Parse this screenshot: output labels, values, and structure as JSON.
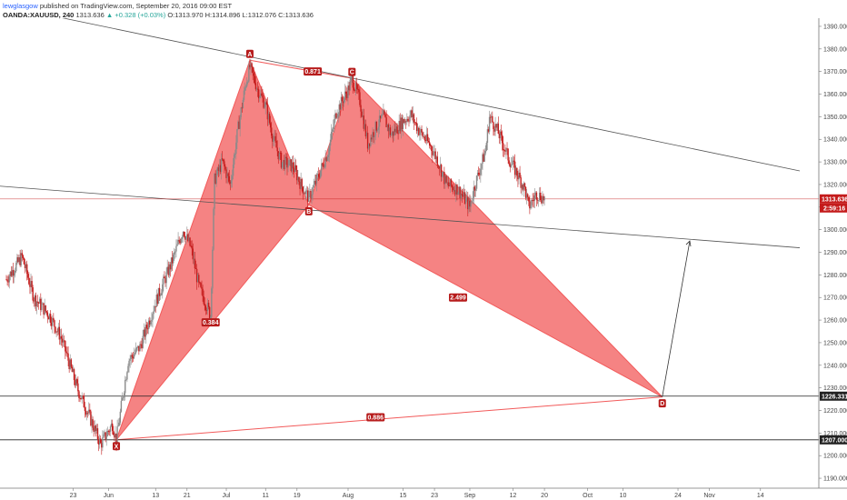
{
  "header": {
    "author": "lewglasgow",
    "published": "published on TradingView.com, September 20, 2016 09:00 EST",
    "symbol": "OANDA:XAUUSD, 240",
    "price": "1313.636",
    "change": "▲ +0.328 (+0.03%)",
    "open": "O:1313.970",
    "high": "H:1314.896",
    "low": "L:1312.076",
    "close": "C:1313.636"
  },
  "colors": {
    "pattern_fill": "#f25a5a",
    "up_candle": "#8a8a8a",
    "down_candle": "#c41b1b",
    "trend_line": "#555555",
    "price_line": "#c41b1b",
    "tag_bg": "#b71c1c"
  },
  "chart_data": {
    "type": "line",
    "title": "",
    "xlabel": "",
    "ylabel": "",
    "ylim": [
      1186,
      1392
    ],
    "grid": false,
    "y_ticks": [
      "1190.000",
      "1200.000",
      "1210.000",
      "1220.000",
      "1230.000",
      "1240.000",
      "1250.000",
      "1260.000",
      "1270.000",
      "1280.000",
      "1290.000",
      "1300.000",
      "1310.000",
      "1320.000",
      "1330.000",
      "1340.000",
      "1350.000",
      "1360.000",
      "1370.000",
      "1380.000",
      "1390.000"
    ],
    "x_ticks": [
      "23",
      "Jun",
      "13",
      "21",
      "Jul",
      "11",
      "19",
      "Aug",
      "15",
      "23",
      "Sep",
      "12",
      "20",
      "Oct",
      "10",
      "24",
      "Nov",
      "14"
    ],
    "price_path": [
      {
        "x": "May 6",
        "y": 1278
      },
      {
        "x": "May 10",
        "y": 1288
      },
      {
        "x": "May 13",
        "y": 1270
      },
      {
        "x": "May 17",
        "y": 1262
      },
      {
        "x": "May 20",
        "y": 1252
      },
      {
        "x": "May 24",
        "y": 1230
      },
      {
        "x": "May 27",
        "y": 1218
      },
      {
        "x": "May 30",
        "y": 1205
      },
      {
        "x": "Jun 2",
        "y": 1214
      },
      {
        "x": "Jun 3",
        "y": 1207
      },
      {
        "x": "Jun 6",
        "y": 1242
      },
      {
        "x": "Jun 9",
        "y": 1248
      },
      {
        "x": "Jun 13",
        "y": 1268
      },
      {
        "x": "Jun 17",
        "y": 1285
      },
      {
        "x": "Jun 20",
        "y": 1300
      },
      {
        "x": "Jun 22",
        "y": 1292
      },
      {
        "x": "Jun 24",
        "y": 1275
      },
      {
        "x": "Jun 27",
        "y": 1262
      },
      {
        "x": "Jun 28",
        "y": 1322
      },
      {
        "x": "Jun 30",
        "y": 1330
      },
      {
        "x": "Jul 2",
        "y": 1320
      },
      {
        "x": "Jul 4",
        "y": 1345
      },
      {
        "x": "Jul 6",
        "y": 1365
      },
      {
        "x": "Jul 7",
        "y": 1372
      },
      {
        "x": "Jul 9",
        "y": 1362
      },
      {
        "x": "Jul 11",
        "y": 1355
      },
      {
        "x": "Jul 13",
        "y": 1340
      },
      {
        "x": "Jul 15",
        "y": 1330
      },
      {
        "x": "Jul 18",
        "y": 1328
      },
      {
        "x": "Jul 20",
        "y": 1320
      },
      {
        "x": "Jul 22",
        "y": 1314
      },
      {
        "x": "Jul 24",
        "y": 1322
      },
      {
        "x": "Jul 27",
        "y": 1335
      },
      {
        "x": "Jul 29",
        "y": 1352
      },
      {
        "x": "Aug 1",
        "y": 1362
      },
      {
        "x": "Aug 2",
        "y": 1367
      },
      {
        "x": "Aug 4",
        "y": 1357
      },
      {
        "x": "Aug 6",
        "y": 1338
      },
      {
        "x": "Aug 8",
        "y": 1345
      },
      {
        "x": "Aug 10",
        "y": 1350
      },
      {
        "x": "Aug 12",
        "y": 1342
      },
      {
        "x": "Aug 15",
        "y": 1348
      },
      {
        "x": "Aug 17",
        "y": 1351
      },
      {
        "x": "Aug 19",
        "y": 1344
      },
      {
        "x": "Aug 22",
        "y": 1337
      },
      {
        "x": "Aug 24",
        "y": 1330
      },
      {
        "x": "Aug 26",
        "y": 1320
      },
      {
        "x": "Aug 29",
        "y": 1318
      },
      {
        "x": "Sep 1",
        "y": 1310
      },
      {
        "x": "Sep 2",
        "y": 1318
      },
      {
        "x": "Sep 5",
        "y": 1335
      },
      {
        "x": "Sep 6",
        "y": 1350
      },
      {
        "x": "Sep 8",
        "y": 1344
      },
      {
        "x": "Sep 11",
        "y": 1331
      },
      {
        "x": "Sep 13",
        "y": 1325
      },
      {
        "x": "Sep 15",
        "y": 1318
      },
      {
        "x": "Sep 16",
        "y": 1310
      },
      {
        "x": "Sep 18",
        "y": 1316
      },
      {
        "x": "Sep 20",
        "y": 1313.636
      }
    ],
    "pattern": {
      "points": [
        {
          "label": "X",
          "x": "Jun 3",
          "y": 1207
        },
        {
          "label": "A",
          "x": "Jul 7",
          "y": 1375
        },
        {
          "label": "B",
          "x": "Jul 22",
          "y": 1311
        },
        {
          "label": "C",
          "x": "Aug 2",
          "y": 1367
        },
        {
          "label": "D",
          "x": "Oct 20",
          "y": 1226
        }
      ],
      "ratios": [
        {
          "label": "0.384",
          "x": "Jun 27",
          "y": 1259
        },
        {
          "label": "0.871",
          "x": "Jul 23",
          "y": 1370
        },
        {
          "label": "2.499",
          "x": "Aug 29",
          "y": 1270
        },
        {
          "label": "0.886",
          "x": "Aug 8",
          "y": 1217
        }
      ]
    },
    "projection": [
      {
        "x": "Oct 20",
        "y": 1226
      },
      {
        "x": "Oct 27",
        "y": 1295
      }
    ],
    "trend_lines": [
      [
        {
          "x": "May 14",
          "y": 1396
        },
        {
          "x": "Nov 24",
          "y": 1326
        }
      ],
      [
        {
          "x": "Apr 29",
          "y": 1320
        },
        {
          "x": "Nov 24",
          "y": 1292
        }
      ]
    ],
    "levels": [
      {
        "value": 1226.331,
        "label": "1226.331"
      },
      {
        "value": 1207.0,
        "label": "1207.000"
      }
    ],
    "current_price": {
      "value": 1313.636,
      "label": "1313.636",
      "countdown": "2:59:16"
    }
  }
}
